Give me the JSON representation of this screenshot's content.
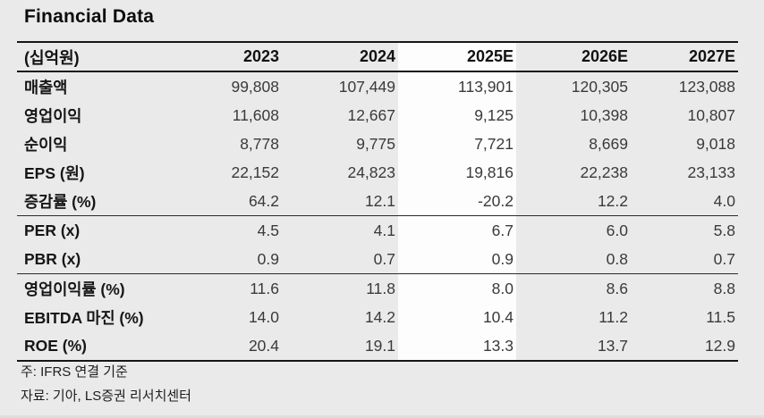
{
  "title": "Financial Data",
  "table": {
    "unit_label": "(십억원)",
    "columns": [
      "2023",
      "2024",
      "2025E",
      "2026E",
      "2027E"
    ],
    "highlighted_column": "2025E",
    "rows": [
      {
        "label": "매출액",
        "values": [
          "99,808",
          "107,449",
          "113,901",
          "120,305",
          "123,088"
        ],
        "section_end": false
      },
      {
        "label": "영업이익",
        "values": [
          "11,608",
          "12,667",
          "9,125",
          "10,398",
          "10,807"
        ],
        "section_end": false
      },
      {
        "label": "순이익",
        "values": [
          "8,778",
          "9,775",
          "7,721",
          "8,669",
          "9,018"
        ],
        "section_end": false
      },
      {
        "label": "EPS (원)",
        "values": [
          "22,152",
          "24,823",
          "19,816",
          "22,238",
          "23,133"
        ],
        "section_end": false
      },
      {
        "label": "증감률 (%)",
        "values": [
          "64.2",
          "12.1",
          "-20.2",
          "12.2",
          "4.0"
        ],
        "section_end": true
      },
      {
        "label": "PER (x)",
        "values": [
          "4.5",
          "4.1",
          "6.7",
          "6.0",
          "5.8"
        ],
        "section_end": false
      },
      {
        "label": "PBR (x)",
        "values": [
          "0.9",
          "0.7",
          "0.9",
          "0.8",
          "0.7"
        ],
        "section_end": true
      },
      {
        "label": "영업이익률 (%)",
        "values": [
          "11.6",
          "11.8",
          "8.0",
          "8.6",
          "8.8"
        ],
        "section_end": false
      },
      {
        "label": "EBITDA 마진 (%)",
        "values": [
          "14.0",
          "14.2",
          "10.4",
          "11.2",
          "11.5"
        ],
        "section_end": false
      },
      {
        "label": "ROE (%)",
        "values": [
          "20.4",
          "19.1",
          "13.3",
          "13.7",
          "12.9"
        ],
        "section_end": false
      }
    ]
  },
  "footnotes": [
    "주: IFRS 연결 기준",
    "자료: 기아, LS증권 리서치센터"
  ],
  "colors": {
    "background": "#eaeaea",
    "highlight_column": "#fdfdfd",
    "rule_line": "#161616"
  }
}
